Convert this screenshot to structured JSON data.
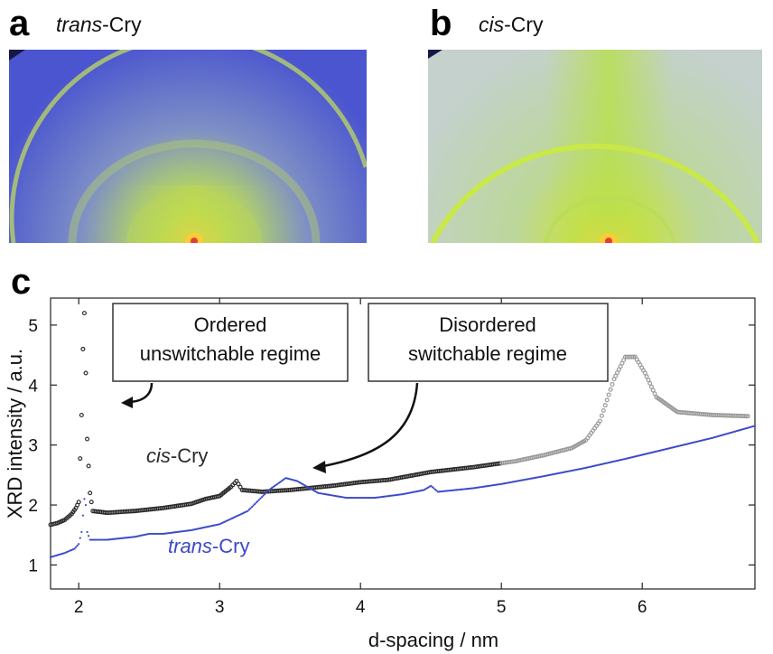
{
  "panels": {
    "a": {
      "letter": "a",
      "title_italic": "trans",
      "title_rest": "-Cry"
    },
    "b": {
      "letter": "b",
      "title_italic": "cis",
      "title_rest": "-Cry"
    },
    "c": {
      "letter": "c"
    }
  },
  "colors": {
    "trans": "#3b48c8",
    "cis": "#2b2b2b",
    "cis_tail": "#9a9a9a",
    "pattern_a_bg": "#4b56cf",
    "pattern_b_bg": "#c7d3c5",
    "ring": "#c9e04a"
  },
  "chart_data": {
    "type": "scatter",
    "xlabel": "d-spacing / nm",
    "ylabel": "XRD intensity / a.u.",
    "xlim": [
      1.8,
      6.8
    ],
    "ylim": [
      0.6,
      5.45
    ],
    "xticks": [
      2,
      3,
      4,
      5,
      6
    ],
    "yticks": [
      1,
      2,
      3,
      4,
      5
    ],
    "series": [
      {
        "name": "cis-Cry",
        "label_italic": "cis",
        "label_rest": "-Cry",
        "points": [
          [
            1.8,
            1.67
          ],
          [
            1.85,
            1.7
          ],
          [
            1.9,
            1.75
          ],
          [
            1.95,
            1.85
          ],
          [
            1.98,
            1.95
          ],
          [
            2.0,
            2.05
          ],
          [
            2.02,
            3.5
          ],
          [
            2.03,
            4.6
          ],
          [
            2.04,
            5.2
          ],
          [
            2.05,
            4.2
          ],
          [
            2.06,
            3.1
          ],
          [
            2.08,
            2.2
          ],
          [
            2.1,
            1.9
          ],
          [
            2.2,
            1.87
          ],
          [
            2.4,
            1.9
          ],
          [
            2.6,
            1.95
          ],
          [
            2.8,
            2.02
          ],
          [
            2.9,
            2.1
          ],
          [
            3.0,
            2.15
          ],
          [
            3.08,
            2.3
          ],
          [
            3.12,
            2.4
          ],
          [
            3.16,
            2.25
          ],
          [
            3.3,
            2.22
          ],
          [
            3.5,
            2.25
          ],
          [
            3.8,
            2.32
          ],
          [
            4.0,
            2.38
          ],
          [
            4.2,
            2.42
          ],
          [
            4.5,
            2.55
          ],
          [
            4.8,
            2.63
          ],
          [
            5.1,
            2.73
          ],
          [
            5.3,
            2.83
          ],
          [
            5.5,
            2.95
          ],
          [
            5.6,
            3.08
          ],
          [
            5.7,
            3.4
          ],
          [
            5.8,
            4.1
          ],
          [
            5.88,
            4.47
          ],
          [
            5.95,
            4.47
          ],
          [
            6.02,
            4.2
          ],
          [
            6.1,
            3.8
          ],
          [
            6.25,
            3.55
          ],
          [
            6.5,
            3.5
          ],
          [
            6.75,
            3.48
          ]
        ]
      },
      {
        "name": "trans-Cry",
        "label_italic": "trans",
        "label_rest": "-Cry",
        "points": [
          [
            1.8,
            1.13
          ],
          [
            1.9,
            1.2
          ],
          [
            1.97,
            1.27
          ],
          [
            2.0,
            1.35
          ],
          [
            2.02,
            1.55
          ],
          [
            2.04,
            2.1
          ],
          [
            2.05,
            2.0
          ],
          [
            2.06,
            1.55
          ],
          [
            2.08,
            1.42
          ],
          [
            2.2,
            1.42
          ],
          [
            2.4,
            1.47
          ],
          [
            2.5,
            1.52
          ],
          [
            2.6,
            1.52
          ],
          [
            2.8,
            1.58
          ],
          [
            3.0,
            1.68
          ],
          [
            3.2,
            1.9
          ],
          [
            3.35,
            2.25
          ],
          [
            3.47,
            2.45
          ],
          [
            3.55,
            2.4
          ],
          [
            3.7,
            2.2
          ],
          [
            3.9,
            2.12
          ],
          [
            4.1,
            2.12
          ],
          [
            4.3,
            2.18
          ],
          [
            4.45,
            2.25
          ],
          [
            4.5,
            2.32
          ],
          [
            4.55,
            2.22
          ],
          [
            4.8,
            2.28
          ],
          [
            5.0,
            2.35
          ],
          [
            5.3,
            2.48
          ],
          [
            5.6,
            2.62
          ],
          [
            5.9,
            2.78
          ],
          [
            6.2,
            2.95
          ],
          [
            6.5,
            3.12
          ],
          [
            6.8,
            3.32
          ]
        ]
      }
    ],
    "annotations": [
      {
        "lines": [
          "Ordered",
          "unswitchable regime"
        ]
      },
      {
        "lines": [
          "Disordered",
          "switchable regime"
        ]
      }
    ]
  }
}
